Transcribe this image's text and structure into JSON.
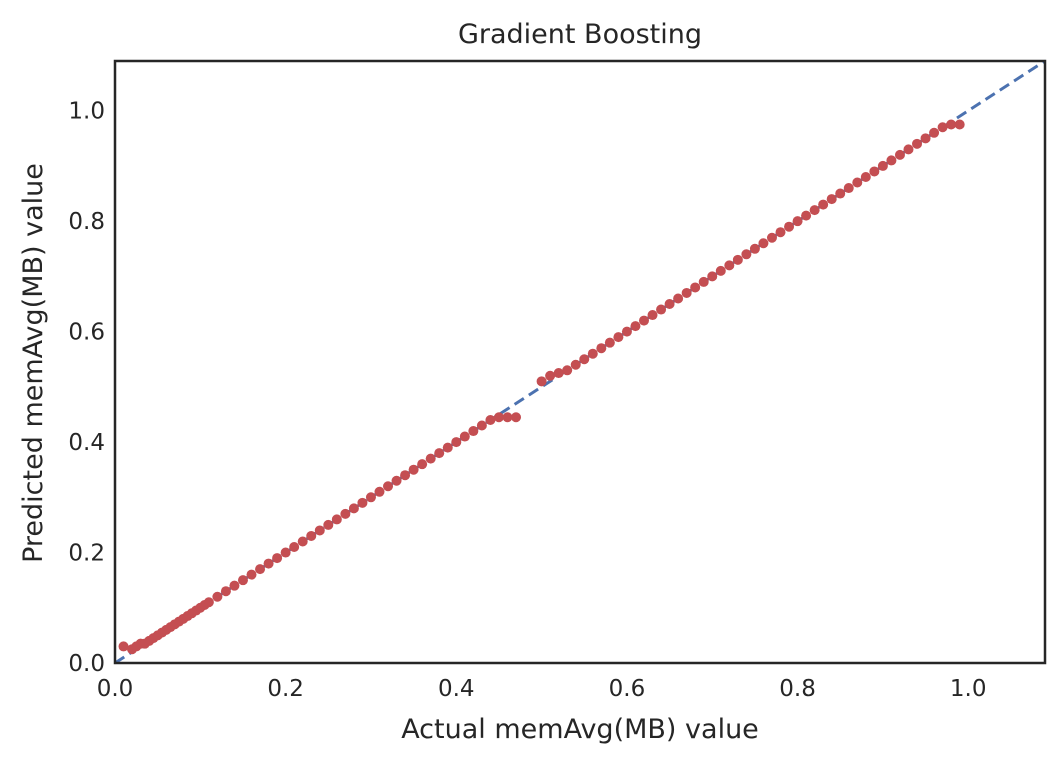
{
  "chart_data": {
    "type": "scatter",
    "title": "Gradient Boosting",
    "xlabel": "Actual memAvg(MB) value",
    "ylabel": "Predicted memAvg(MB) value",
    "xlim": [
      0.0,
      1.09
    ],
    "ylim": [
      0.0,
      1.09
    ],
    "xticks": [
      "0.0",
      "0.2",
      "0.4",
      "0.6",
      "0.8",
      "1.0"
    ],
    "yticks": [
      "0.0",
      "0.2",
      "0.4",
      "0.6",
      "0.8",
      "1.0"
    ],
    "grid": false,
    "legend": "none",
    "colors": {
      "points": "#c44e52",
      "reference_line": "#4c72b0",
      "axes": "#262626"
    },
    "reference_line": {
      "style": "dashed",
      "from": [
        0.0,
        0.0
      ],
      "to": [
        1.09,
        1.09
      ]
    },
    "series": [
      {
        "x": [
          0.01,
          0.02,
          0.025,
          0.03,
          0.035,
          0.04,
          0.045,
          0.05,
          0.055,
          0.06,
          0.065,
          0.07,
          0.075,
          0.08,
          0.085,
          0.09,
          0.095,
          0.1,
          0.105,
          0.11,
          0.12,
          0.13,
          0.14,
          0.15,
          0.16,
          0.17,
          0.18,
          0.19,
          0.2,
          0.21,
          0.22,
          0.23,
          0.24,
          0.25,
          0.26,
          0.27,
          0.28,
          0.29,
          0.3,
          0.31,
          0.32,
          0.33,
          0.34,
          0.35,
          0.36,
          0.37,
          0.38,
          0.39,
          0.4,
          0.41,
          0.42,
          0.43,
          0.44,
          0.45,
          0.46,
          0.47,
          0.5,
          0.51,
          0.52,
          0.53,
          0.54,
          0.55,
          0.56,
          0.57,
          0.58,
          0.59,
          0.6,
          0.61,
          0.62,
          0.63,
          0.64,
          0.65,
          0.66,
          0.67,
          0.68,
          0.69,
          0.7,
          0.71,
          0.72,
          0.73,
          0.74,
          0.75,
          0.76,
          0.77,
          0.78,
          0.79,
          0.8,
          0.81,
          0.82,
          0.83,
          0.84,
          0.85,
          0.86,
          0.87,
          0.88,
          0.89,
          0.9,
          0.91,
          0.92,
          0.93,
          0.94,
          0.95,
          0.96,
          0.97,
          0.98,
          0.99
        ],
        "y": [
          0.03,
          0.025,
          0.03,
          0.035,
          0.035,
          0.04,
          0.045,
          0.05,
          0.055,
          0.06,
          0.065,
          0.07,
          0.075,
          0.08,
          0.085,
          0.09,
          0.095,
          0.1,
          0.105,
          0.11,
          0.12,
          0.13,
          0.14,
          0.15,
          0.16,
          0.17,
          0.18,
          0.19,
          0.2,
          0.21,
          0.22,
          0.23,
          0.24,
          0.25,
          0.26,
          0.27,
          0.28,
          0.29,
          0.3,
          0.31,
          0.32,
          0.33,
          0.34,
          0.35,
          0.36,
          0.37,
          0.38,
          0.39,
          0.4,
          0.41,
          0.42,
          0.43,
          0.44,
          0.445,
          0.445,
          0.445,
          0.51,
          0.52,
          0.525,
          0.53,
          0.54,
          0.55,
          0.56,
          0.57,
          0.58,
          0.59,
          0.6,
          0.61,
          0.62,
          0.63,
          0.64,
          0.65,
          0.66,
          0.67,
          0.68,
          0.69,
          0.7,
          0.71,
          0.72,
          0.73,
          0.74,
          0.75,
          0.76,
          0.77,
          0.78,
          0.79,
          0.8,
          0.81,
          0.82,
          0.83,
          0.84,
          0.85,
          0.86,
          0.87,
          0.88,
          0.89,
          0.9,
          0.91,
          0.92,
          0.93,
          0.94,
          0.95,
          0.96,
          0.97,
          0.975,
          0.975
        ]
      }
    ]
  }
}
